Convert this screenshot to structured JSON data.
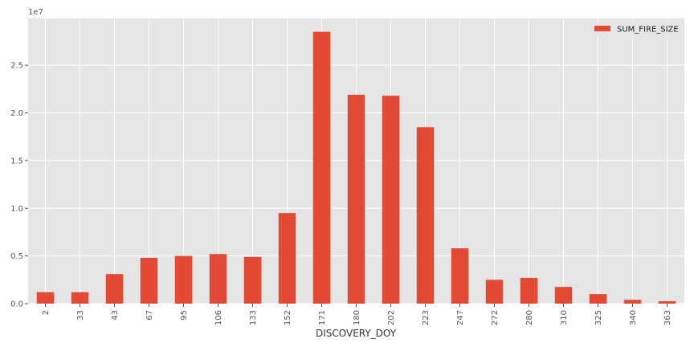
{
  "chart_data": {
    "type": "bar",
    "xlabel": "DISCOVERY_DOY",
    "ylabel": "",
    "y_offset_label": "1e7",
    "ylim": [
      0,
      29900000
    ],
    "yticks": [
      0,
      5000000,
      10000000,
      15000000,
      20000000,
      25000000
    ],
    "ytick_labels": [
      "0.0",
      "0.5",
      "1.0",
      "1.5",
      "2.0",
      "2.5"
    ],
    "grid": true,
    "legend_position": "top-right",
    "categories": [
      "2",
      "33",
      "43",
      "67",
      "95",
      "106",
      "133",
      "152",
      "171",
      "180",
      "202",
      "223",
      "247",
      "272",
      "280",
      "310",
      "325",
      "340",
      "363"
    ],
    "series": [
      {
        "name": "SUM_FIRE_SIZE",
        "color": "#E24A33",
        "values": [
          1200000,
          1200000,
          3100000,
          4800000,
          5000000,
          5200000,
          4900000,
          9500000,
          28500000,
          21900000,
          21800000,
          18500000,
          5800000,
          2500000,
          2700000,
          1750000,
          1000000,
          400000,
          250000
        ]
      }
    ],
    "colors": {
      "plot_background": "#E5E5E5",
      "grid": "#FFFFFF",
      "bar": "#E24A33"
    }
  }
}
